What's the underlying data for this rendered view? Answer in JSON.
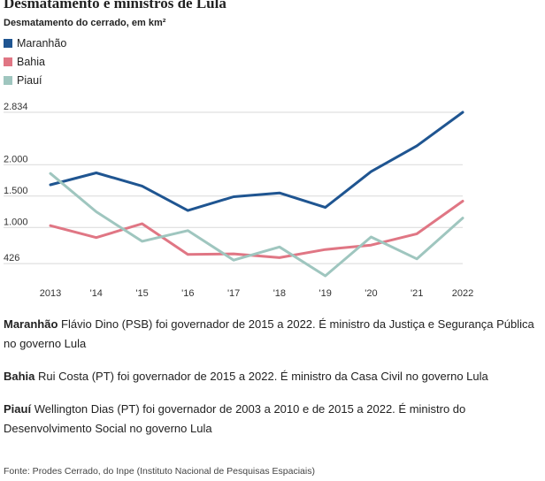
{
  "header": {
    "title": "Desmatamento e ministros de Lula",
    "subtitle": "Desmatamento do cerrado, em km²"
  },
  "legend": [
    {
      "label": "Maranhão",
      "color": "#1f5591"
    },
    {
      "label": "Bahia",
      "color": "#e07684"
    },
    {
      "label": "Piauí",
      "color": "#9fc6bf"
    }
  ],
  "chart_data": {
    "type": "line",
    "title": "Desmatamento e ministros de Lula",
    "subtitle": "Desmatamento do cerrado, em km²",
    "xlabel": "",
    "ylabel": "",
    "categories": [
      "2013",
      "'14",
      "'15",
      "'16",
      "'17",
      "'18",
      "'19",
      "'20",
      "'21",
      "2022"
    ],
    "y_ticks": [
      {
        "value": 426,
        "label": "426"
      },
      {
        "value": 1000,
        "label": "1.000"
      },
      {
        "value": 1500,
        "label": "1.500"
      },
      {
        "value": 2000,
        "label": "2.000"
      },
      {
        "value": 2834,
        "label": "2.834"
      }
    ],
    "ylim": [
      200,
      2834
    ],
    "grid": true,
    "legend_position": "top-left",
    "series": [
      {
        "name": "Maranhão",
        "color": "#1f5591",
        "values": [
          1680,
          1870,
          1660,
          1270,
          1490,
          1550,
          1320,
          1890,
          2300,
          2834
        ]
      },
      {
        "name": "Bahia",
        "color": "#e07684",
        "values": [
          1030,
          840,
          1060,
          570,
          580,
          520,
          650,
          720,
          900,
          1420
        ]
      },
      {
        "name": "Piauí",
        "color": "#9fc6bf",
        "values": [
          1860,
          1250,
          780,
          950,
          480,
          690,
          230,
          850,
          500,
          1150
        ]
      }
    ]
  },
  "notes": [
    {
      "state": "Maranhão",
      "text": "Flávio Dino (PSB) foi governador de 2015 a 2022. É ministro da Justiça e Segurança Pública no governo Lula"
    },
    {
      "state": "Bahia",
      "text": "Rui Costa (PT) foi governador de 2015 a 2022. É ministro da Casa Civil no governo Lula"
    },
    {
      "state": "Piauí",
      "text": "Wellington Dias (PT) foi governador de 2003 a 2010 e de 2015 a 2022. É ministro do Desenvolvimento Social no governo Lula"
    }
  ],
  "source": "Fonte: Prodes Cerrado, do Inpe (Instituto Nacional de Pesquisas Espaciais)"
}
